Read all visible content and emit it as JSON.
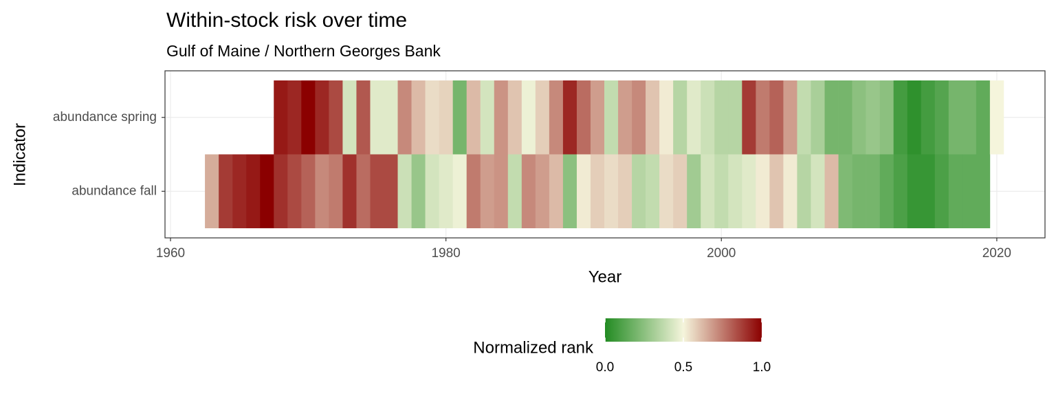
{
  "chart_data": {
    "type": "heatmap",
    "title": "Within-stock risk over time",
    "subtitle": "Gulf of Maine / Northern Georges Bank",
    "xlabel": "Year",
    "ylabel": "Indicator",
    "categories": [
      "abundance spring",
      "abundance fall"
    ],
    "series": [
      {
        "name": "abundance spring",
        "x": [
          1968,
          1969,
          1970,
          1971,
          1972,
          1973,
          1974,
          1975,
          1976,
          1977,
          1978,
          1979,
          1980,
          1981,
          1982,
          1983,
          1984,
          1985,
          1986,
          1987,
          1988,
          1989,
          1990,
          1991,
          1992,
          1993,
          1994,
          1995,
          1996,
          1997,
          1998,
          1999,
          2000,
          2001,
          2002,
          2003,
          2004,
          2005,
          2006,
          2007,
          2008,
          2009,
          2010,
          2011,
          2012,
          2013,
          2014,
          2015,
          2016,
          2017,
          2018,
          2019,
          2020
        ],
        "values": [
          0.95,
          0.92,
          1.0,
          0.92,
          0.85,
          0.42,
          0.82,
          0.45,
          0.45,
          0.72,
          0.62,
          0.55,
          0.57,
          0.2,
          0.62,
          0.42,
          0.7,
          0.6,
          0.48,
          0.58,
          0.72,
          0.92,
          0.78,
          0.68,
          0.38,
          0.68,
          0.72,
          0.6,
          0.52,
          0.35,
          0.45,
          0.4,
          0.35,
          0.35,
          0.88,
          0.75,
          0.8,
          0.68,
          0.38,
          0.32,
          0.2,
          0.2,
          0.25,
          0.28,
          0.25,
          0.08,
          0.03,
          0.08,
          0.12,
          0.2,
          0.2,
          0.15,
          0.5
        ]
      },
      {
        "name": "abundance fall",
        "x": [
          1963,
          1964,
          1965,
          1966,
          1967,
          1968,
          1969,
          1970,
          1971,
          1972,
          1973,
          1974,
          1975,
          1976,
          1977,
          1978,
          1979,
          1980,
          1981,
          1982,
          1983,
          1984,
          1985,
          1986,
          1987,
          1988,
          1989,
          1990,
          1991,
          1992,
          1993,
          1994,
          1995,
          1996,
          1997,
          1998,
          1999,
          2000,
          2001,
          2002,
          2003,
          2004,
          2005,
          2006,
          2007,
          2008,
          2009,
          2010,
          2011,
          2012,
          2013,
          2014,
          2015,
          2016,
          2017,
          2018,
          2019
        ],
        "values": [
          0.65,
          0.88,
          0.92,
          0.95,
          1.0,
          0.9,
          0.85,
          0.8,
          0.72,
          0.75,
          0.9,
          0.78,
          0.85,
          0.85,
          0.4,
          0.28,
          0.42,
          0.45,
          0.48,
          0.75,
          0.68,
          0.7,
          0.38,
          0.72,
          0.68,
          0.62,
          0.25,
          0.52,
          0.58,
          0.55,
          0.58,
          0.35,
          0.38,
          0.55,
          0.58,
          0.3,
          0.42,
          0.38,
          0.42,
          0.45,
          0.52,
          0.6,
          0.52,
          0.35,
          0.42,
          0.62,
          0.22,
          0.2,
          0.2,
          0.15,
          0.1,
          0.05,
          0.05,
          0.1,
          0.15,
          0.15,
          0.15
        ]
      }
    ],
    "xlim": [
      1959.6,
      2023.5
    ],
    "xticks": [
      1960,
      1980,
      2000,
      2020
    ],
    "grid": true,
    "colorbar": {
      "title": "Normalized rank",
      "colors": [
        "#228B22",
        "#F5F5DC",
        "#8B0000"
      ],
      "clim": [
        0,
        1
      ],
      "ticks": [
        {
          "value": 0,
          "label": "0.0"
        },
        {
          "value": 0.5,
          "label": "0.5"
        },
        {
          "value": 1,
          "label": "1.0"
        }
      ]
    },
    "legend": "bottom"
  }
}
